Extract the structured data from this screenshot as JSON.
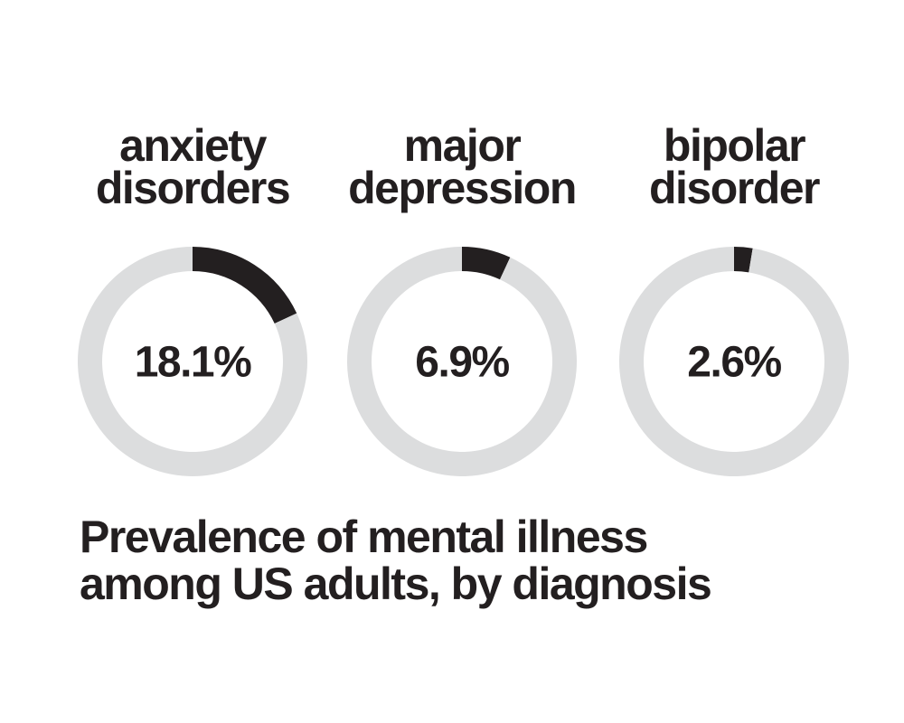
{
  "title": [
    "Prevalence of mental illness",
    "among US adults, by diagnosis"
  ],
  "chart_data": [
    {
      "type": "donut",
      "title": [
        "anxiety",
        "disorders"
      ],
      "values": [
        18.1,
        81.9
      ],
      "value_label": "18.1%",
      "colors": [
        "#231f20",
        "#dcddde"
      ]
    },
    {
      "type": "donut",
      "title": [
        "major",
        "depression"
      ],
      "values": [
        6.9,
        93.1
      ],
      "value_label": "6.9%",
      "colors": [
        "#231f20",
        "#dcddde"
      ]
    },
    {
      "type": "donut",
      "title": [
        "bipolar",
        "disorder"
      ],
      "values": [
        2.6,
        97.4
      ],
      "value_label": "2.6%",
      "colors": [
        "#231f20",
        "#dcddde"
      ]
    }
  ]
}
